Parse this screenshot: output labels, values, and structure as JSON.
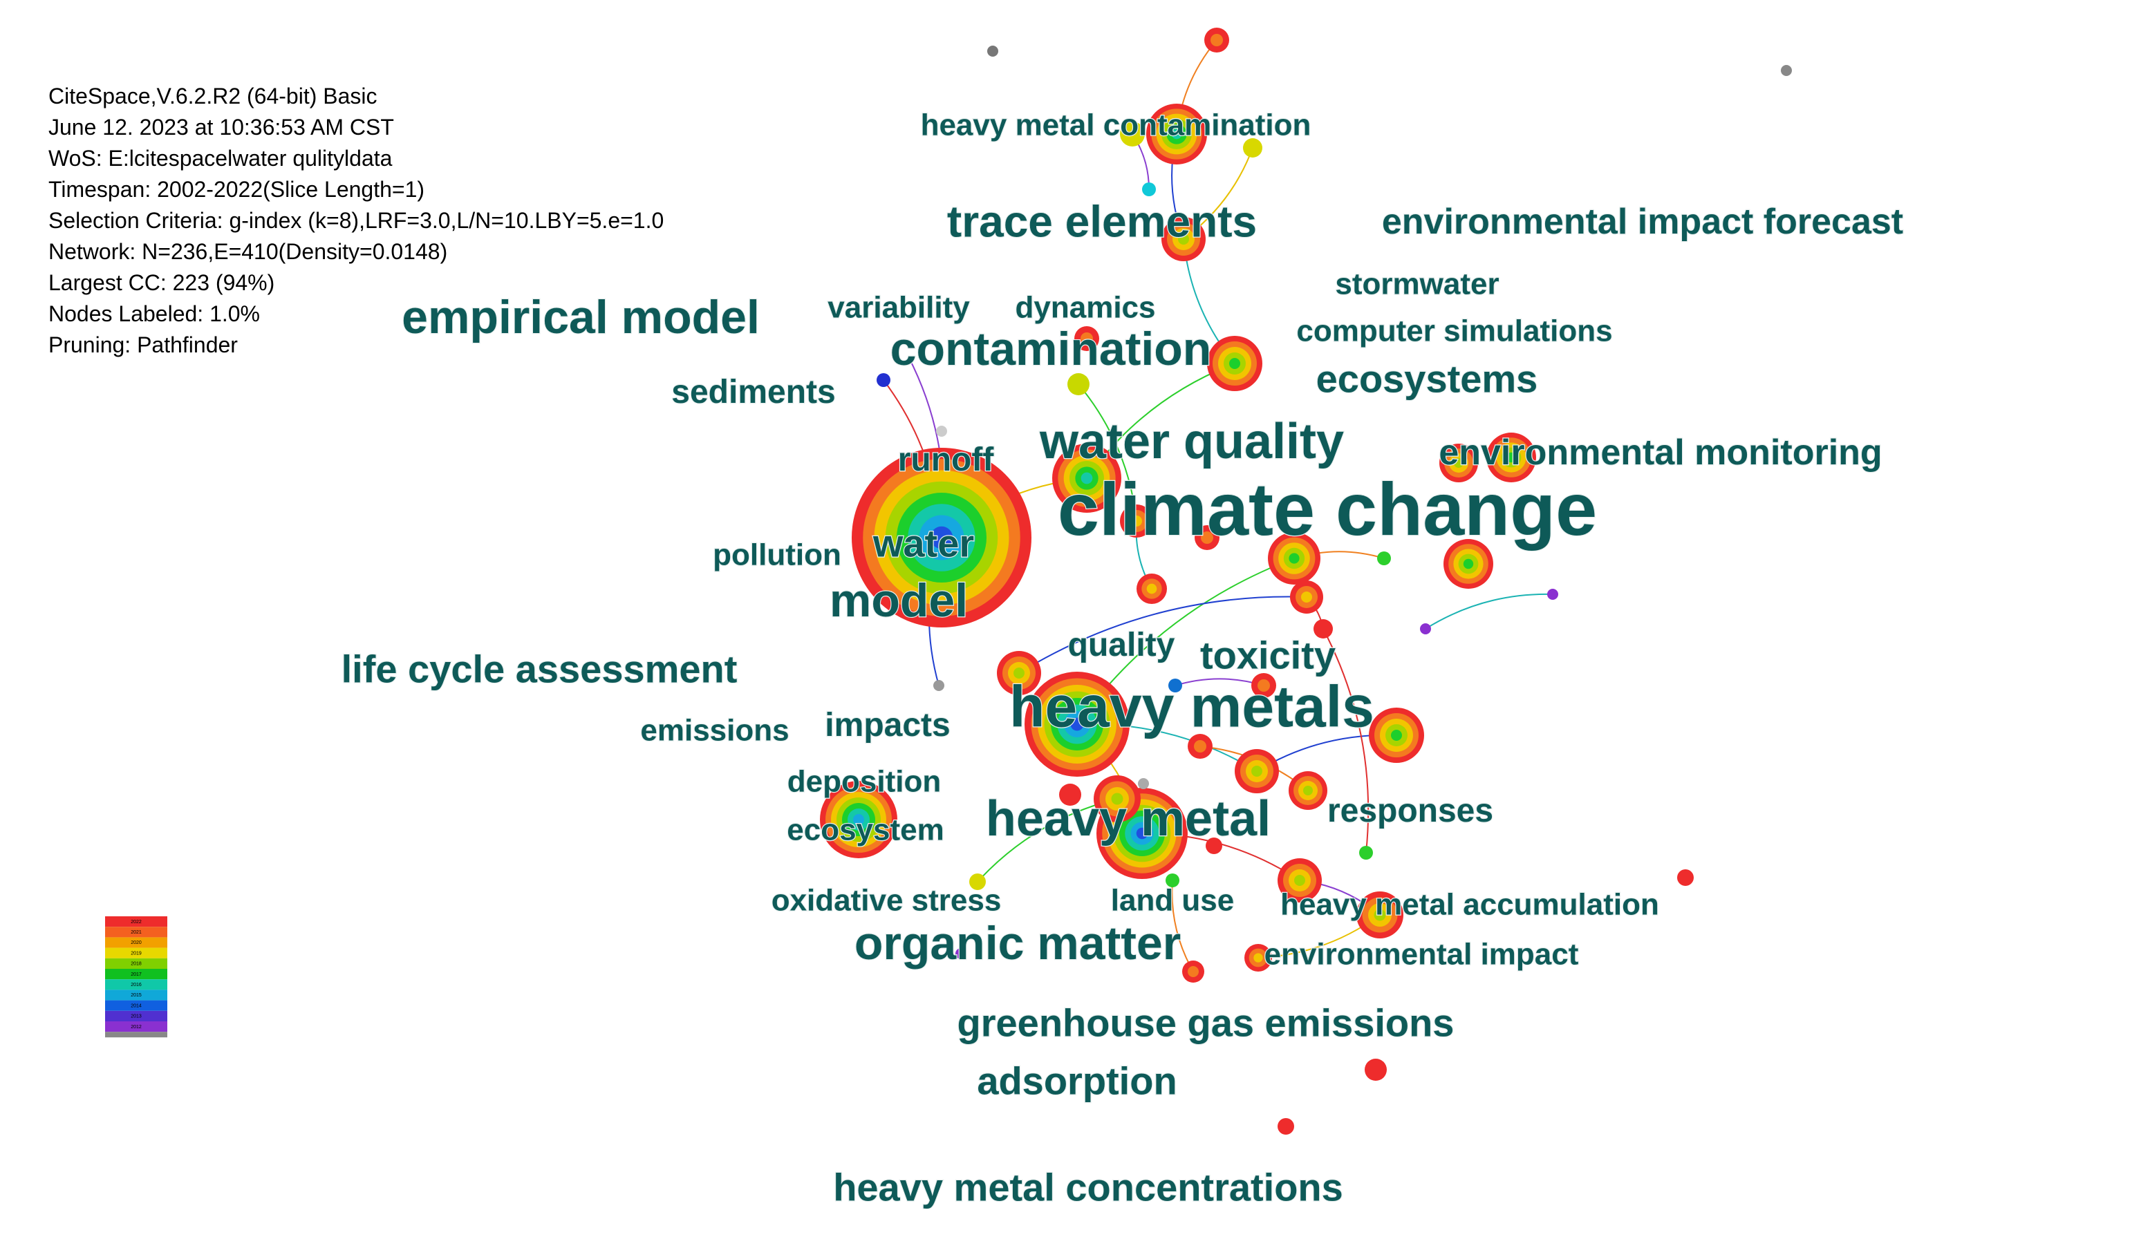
{
  "info": [
    "CiteSpace,V.6.2.R2 (64-bit) Basic",
    "June 12. 2023 at 10:36:53 AM CST",
    "WoS: E:lcitespacelwater qulityldata",
    "Timespan: 2002-2022(Slice Length=1)",
    "Selection Criteria: g-index (k=8),LRF=3.0,L/N=10.LBY=5.e=1.0",
    "Network: N=236,E=410(Density=0.0148)",
    "Largest CC: 223 (94%)",
    "Nodes Labeled: 1.0%",
    "Pruning: Pathfinder"
  ],
  "nodes": [
    {
      "label": "heavy metal contamination"
    },
    {
      "label": "trace elements"
    },
    {
      "label": "environmental impact forecast"
    },
    {
      "label": "stormwater"
    },
    {
      "label": "empirical model"
    },
    {
      "label": "variability"
    },
    {
      "label": "dynamics"
    },
    {
      "label": "computer simulations"
    },
    {
      "label": "contamination"
    },
    {
      "label": "ecosystems"
    },
    {
      "label": "sediments"
    },
    {
      "label": "water quality"
    },
    {
      "label": "environmental monitoring"
    },
    {
      "label": "runoff"
    },
    {
      "label": "climate change"
    },
    {
      "label": "water"
    },
    {
      "label": "pollution"
    },
    {
      "label": "model"
    },
    {
      "label": "quality"
    },
    {
      "label": "toxicity"
    },
    {
      "label": "life cycle assessment"
    },
    {
      "label": "heavy metals"
    },
    {
      "label": "emissions"
    },
    {
      "label": "impacts"
    },
    {
      "label": "deposition"
    },
    {
      "label": "heavy metal"
    },
    {
      "label": "responses"
    },
    {
      "label": "ecosystem"
    },
    {
      "label": "oxidative stress"
    },
    {
      "label": "land use"
    },
    {
      "label": "heavy metal accumulation"
    },
    {
      "label": "organic matter"
    },
    {
      "label": "environmental impact"
    },
    {
      "label": "greenhouse gas emissions"
    },
    {
      "label": "adsorption"
    },
    {
      "label": "heavy metal concentrations"
    }
  ],
  "legend": [
    "2022",
    "2021",
    "2020",
    "2019",
    "2018",
    "2017",
    "2016",
    "2015",
    "2014",
    "2013",
    "2012"
  ]
}
